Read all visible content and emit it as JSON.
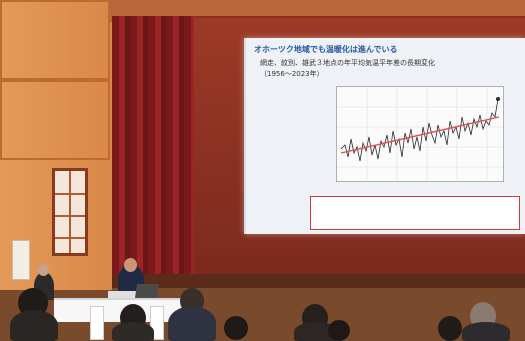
{
  "slide": {
    "title": "オホーツク地域でも温暖化は進んでいる",
    "subtitle_line1": "網走、紋別、雄武３地点の年平均気温平年差の長期変化",
    "subtitle_line2": "（1956～2023年）",
    "chart_caption": "",
    "bullets": [
      "",
      ""
    ]
  },
  "colors": {
    "slide_title": "#2a56a8",
    "chart_series": "#2a2a2a",
    "trend_line": "#e05050",
    "bullet_text": "#d2322e"
  }
}
